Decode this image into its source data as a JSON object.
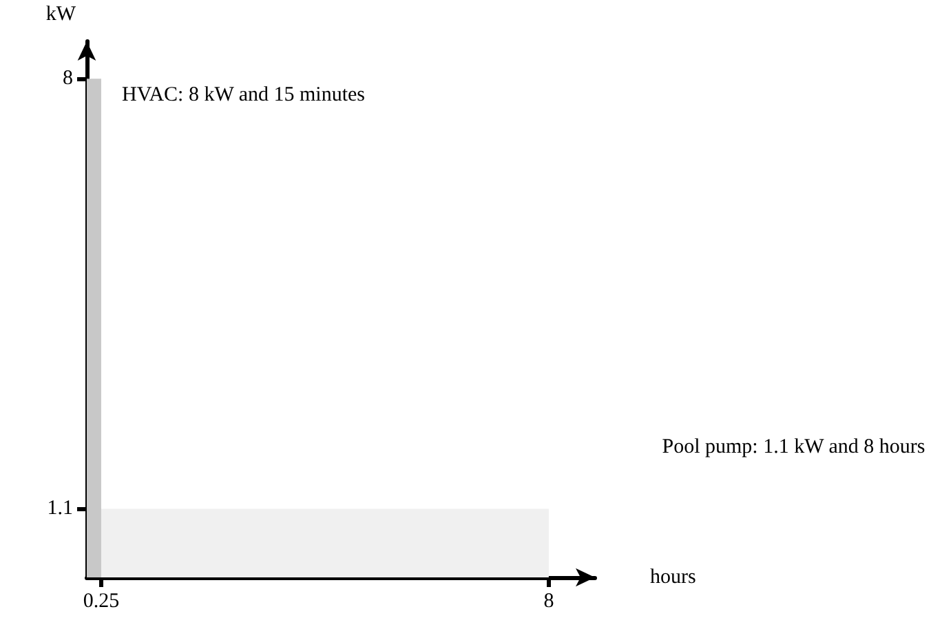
{
  "chart_data": {
    "type": "area",
    "xlabel": "hours",
    "ylabel": "kW",
    "xlim": [
      0,
      8.8
    ],
    "ylim": [
      0,
      8.6
    ],
    "xticks": [
      0.25,
      8
    ],
    "yticks": [
      1.1,
      8
    ],
    "grid": false,
    "marker": "none",
    "series": [
      {
        "color": "#f0f0f0",
        "x": [
          0,
          8
        ],
        "values": [
          1.1,
          1.1
        ]
      },
      {
        "color": "#c8c8c8",
        "x": [
          0,
          0.25
        ],
        "values": [
          8,
          8
        ]
      }
    ],
    "annotations": [
      {
        "text": "HVAC: 8 kW and 15 minutes",
        "x": 0.25,
        "y": 8
      },
      "Pool pump: 1.1 kW and 8 hours"
    ]
  }
}
